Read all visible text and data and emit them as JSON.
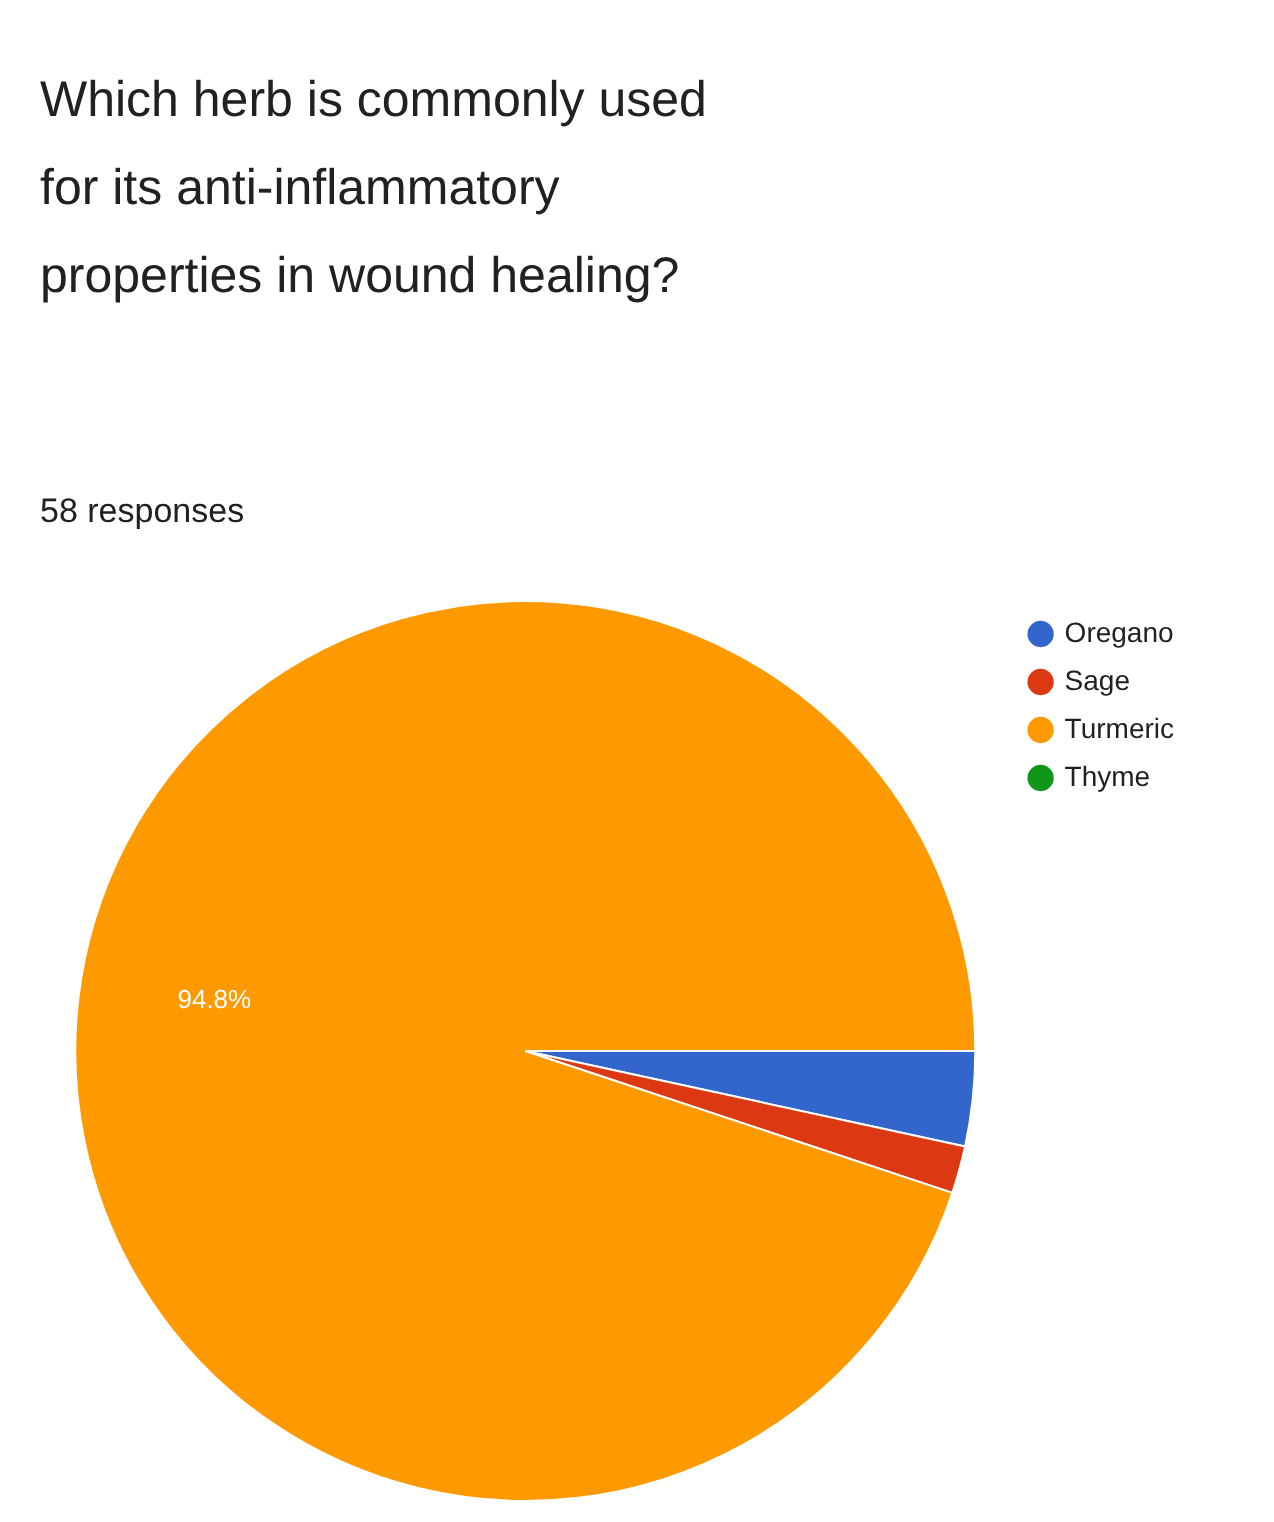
{
  "chart_data": {
    "type": "pie",
    "title": "Which herb is commonly used for its anti-inflammatory properties in wound healing?",
    "subtitle": "58 responses",
    "categories": [
      "Oregano",
      "Sage",
      "Turmeric",
      "Thyme"
    ],
    "values": [
      3.4,
      1.7,
      94.8,
      0
    ],
    "colors": [
      "#3366cc",
      "#dc3912",
      "#ff9900",
      "#109618"
    ],
    "value_labels": [
      null,
      null,
      "94.8%",
      null
    ],
    "legend": "right"
  }
}
